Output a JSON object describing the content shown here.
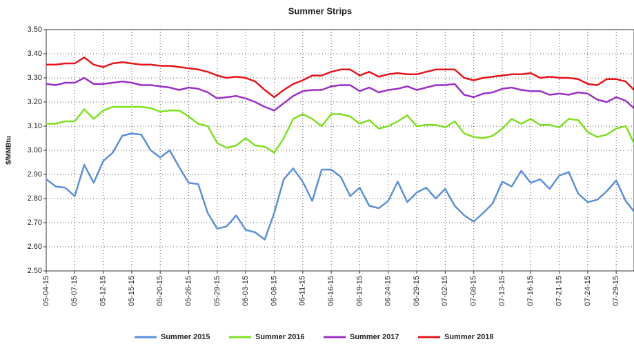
{
  "chart_data": {
    "type": "line",
    "title": "Summer Strips",
    "y_label": "$/MMBtu",
    "categories": [
      "05-04-15",
      null,
      null,
      "05-07-15",
      null,
      null,
      "05-12-15",
      null,
      null,
      "05-15-15",
      null,
      null,
      "05-20-15",
      null,
      null,
      "05-26-15",
      null,
      null,
      "05-29-15",
      null,
      null,
      "06-03-15",
      null,
      null,
      "06-08-15",
      null,
      null,
      "06-11-15",
      null,
      null,
      "06-16-15",
      null,
      null,
      "06-19-15",
      null,
      null,
      "06-24-15",
      null,
      null,
      "06-29-15",
      null,
      null,
      "07-02-15",
      null,
      null,
      "07-08-15",
      null,
      null,
      "07-13-15",
      null,
      null,
      "07-16-15",
      null,
      null,
      "07-21-15",
      null,
      null,
      "07-24-15",
      null,
      null,
      "07-29-15",
      null,
      null
    ],
    "series": [
      {
        "name": "Summer 2015",
        "color": "#5b8fd9",
        "values": [
          2.88,
          2.85,
          2.845,
          2.81,
          2.94,
          2.865,
          2.955,
          2.99,
          3.06,
          3.07,
          3.065,
          3.0,
          2.97,
          3.0,
          2.93,
          2.865,
          2.86,
          2.74,
          2.675,
          2.685,
          2.73,
          2.67,
          2.66,
          2.63,
          2.74,
          2.88,
          2.925,
          2.87,
          2.79,
          2.92,
          2.92,
          2.89,
          2.81,
          2.845,
          2.77,
          2.76,
          2.79,
          2.87,
          2.785,
          2.825,
          2.845,
          2.8,
          2.84,
          2.77,
          2.73,
          2.705,
          2.74,
          2.78,
          2.87,
          2.85,
          2.915,
          2.865,
          2.88,
          2.84,
          2.895,
          2.91,
          2.82,
          2.785,
          2.795,
          2.83,
          2.875,
          2.79,
          2.74
        ]
      },
      {
        "name": "Summer 2016",
        "color": "#7ee01c",
        "values": [
          3.11,
          3.11,
          3.12,
          3.12,
          3.17,
          3.13,
          3.165,
          3.18,
          3.18,
          3.18,
          3.18,
          3.175,
          3.16,
          3.165,
          3.165,
          3.14,
          3.11,
          3.1,
          3.03,
          3.01,
          3.02,
          3.05,
          3.02,
          3.015,
          2.99,
          3.05,
          3.13,
          3.15,
          3.13,
          3.1,
          3.15,
          3.15,
          3.14,
          3.11,
          3.125,
          3.09,
          3.1,
          3.12,
          3.145,
          3.1,
          3.105,
          3.105,
          3.095,
          3.12,
          3.07,
          3.055,
          3.05,
          3.06,
          3.09,
          3.13,
          3.11,
          3.13,
          3.105,
          3.105,
          3.095,
          3.13,
          3.125,
          3.075,
          3.055,
          3.065,
          3.09,
          3.1,
          3.02
        ]
      },
      {
        "name": "Summer 2017",
        "color": "#9a2fc8",
        "values": [
          3.275,
          3.27,
          3.28,
          3.28,
          3.3,
          3.275,
          3.275,
          3.28,
          3.285,
          3.28,
          3.27,
          3.27,
          3.265,
          3.26,
          3.25,
          3.26,
          3.255,
          3.24,
          3.215,
          3.22,
          3.225,
          3.215,
          3.2,
          3.18,
          3.165,
          3.195,
          3.225,
          3.245,
          3.25,
          3.25,
          3.265,
          3.27,
          3.27,
          3.245,
          3.26,
          3.24,
          3.25,
          3.255,
          3.265,
          3.25,
          3.26,
          3.27,
          3.27,
          3.275,
          3.23,
          3.22,
          3.235,
          3.24,
          3.255,
          3.26,
          3.25,
          3.245,
          3.245,
          3.23,
          3.235,
          3.23,
          3.24,
          3.235,
          3.21,
          3.2,
          3.22,
          3.205,
          3.17
        ]
      },
      {
        "name": "Summer 2018",
        "color": "#e8141a",
        "values": [
          3.355,
          3.355,
          3.36,
          3.36,
          3.385,
          3.355,
          3.345,
          3.36,
          3.365,
          3.36,
          3.355,
          3.355,
          3.35,
          3.35,
          3.345,
          3.34,
          3.335,
          3.325,
          3.31,
          3.3,
          3.305,
          3.3,
          3.285,
          3.25,
          3.22,
          3.25,
          3.275,
          3.29,
          3.31,
          3.31,
          3.325,
          3.335,
          3.335,
          3.31,
          3.325,
          3.305,
          3.315,
          3.32,
          3.315,
          3.315,
          3.325,
          3.335,
          3.335,
          3.335,
          3.3,
          3.29,
          3.3,
          3.305,
          3.31,
          3.315,
          3.315,
          3.32,
          3.3,
          3.305,
          3.3,
          3.3,
          3.295,
          3.275,
          3.27,
          3.295,
          3.295,
          3.285,
          3.245
        ]
      }
    ],
    "ylim": [
      2.5,
      3.5
    ],
    "yticks": [
      {
        "value": 2.5,
        "label": "2.50"
      },
      {
        "value": 2.6,
        "label": "2.60"
      },
      {
        "value": 2.7,
        "label": "2.70"
      },
      {
        "value": 2.8,
        "label": "2.80"
      },
      {
        "value": 2.9,
        "label": "2.90"
      },
      {
        "value": 3.0,
        "label": "3.00"
      },
      {
        "value": 3.1,
        "label": "3.10"
      },
      {
        "value": 3.2,
        "label": "3.20"
      },
      {
        "value": 3.3,
        "label": "3.30"
      },
      {
        "value": 3.4,
        "label": "3.40"
      },
      {
        "value": 3.5,
        "label": "3.50"
      }
    ],
    "grid": true,
    "legend": "bottom"
  }
}
